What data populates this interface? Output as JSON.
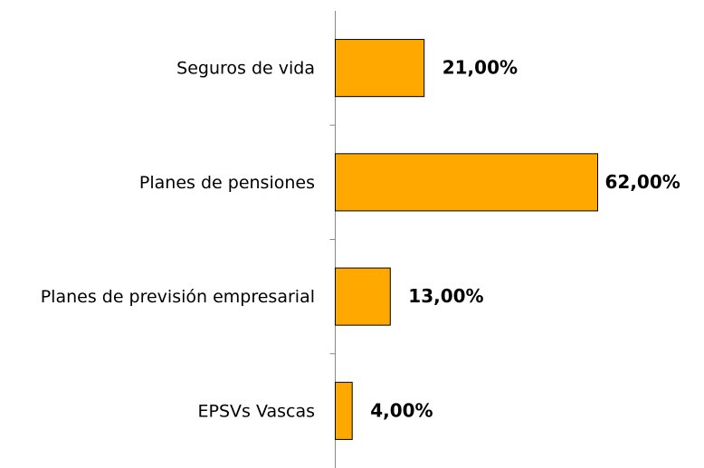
{
  "chart_data": {
    "type": "bar",
    "orientation": "horizontal",
    "categories": [
      "Seguros de vida",
      "Planes de pensiones",
      "Planes de previsión empresarial",
      "EPSVs Vascas"
    ],
    "values": [
      21,
      62,
      13,
      4
    ],
    "value_labels": [
      "21,00%",
      "62,00%",
      "13,00%",
      "4,00%"
    ],
    "color": "#ffa800"
  }
}
